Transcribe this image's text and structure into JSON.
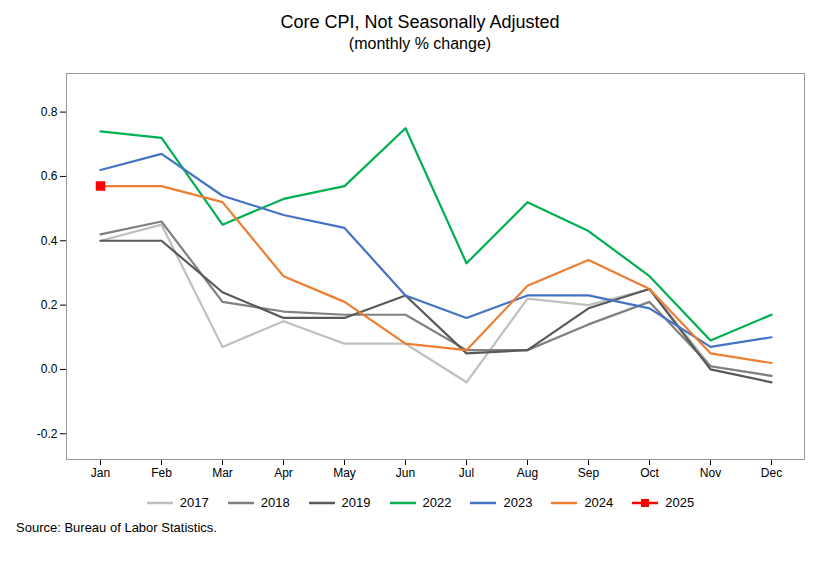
{
  "chart_data": {
    "type": "line",
    "title": "Core CPI, Not Seasonally Adjusted",
    "subtitle": "(monthly % change)",
    "source": "Source: Bureau of Labor Statistics.",
    "categories": [
      "Jan",
      "Feb",
      "Mar",
      "Apr",
      "May",
      "Jun",
      "Jul",
      "Aug",
      "Sep",
      "Oct",
      "Nov",
      "Dec"
    ],
    "series": [
      {
        "name": "2017",
        "color": "#bfbfbf",
        "values": [
          0.4,
          0.45,
          0.07,
          0.15,
          0.08,
          0.08,
          -0.04,
          0.22,
          0.2,
          0.25,
          0.01,
          -0.02
        ]
      },
      {
        "name": "2018",
        "color": "#808080",
        "values": [
          0.42,
          0.46,
          0.21,
          0.18,
          0.17,
          0.17,
          0.06,
          0.06,
          0.14,
          0.21,
          0.01,
          -0.02
        ]
      },
      {
        "name": "2019",
        "color": "#595959",
        "values": [
          0.4,
          0.4,
          0.24,
          0.16,
          0.16,
          0.23,
          0.05,
          0.06,
          0.19,
          0.25,
          0.0,
          -0.04
        ]
      },
      {
        "name": "2022",
        "color": "#00b050",
        "values": [
          0.74,
          0.72,
          0.45,
          0.53,
          0.57,
          0.75,
          0.33,
          0.52,
          0.43,
          0.29,
          0.09,
          0.17
        ]
      },
      {
        "name": "2023",
        "color": "#4472c4",
        "values": [
          0.62,
          0.67,
          0.54,
          0.48,
          0.44,
          0.23,
          0.16,
          0.23,
          0.23,
          0.19,
          0.07,
          0.1
        ]
      },
      {
        "name": "2024",
        "color": "#ed7d31",
        "values": [
          0.57,
          0.57,
          0.52,
          0.29,
          0.21,
          0.08,
          0.06,
          0.26,
          0.34,
          0.25,
          0.05,
          0.02
        ]
      },
      {
        "name": "2025",
        "color": "#ff0000",
        "marker": "square",
        "values": [
          0.57,
          null,
          null,
          null,
          null,
          null,
          null,
          null,
          null,
          null,
          null,
          null
        ]
      }
    ],
    "ylim": [
      -0.28,
      0.92
    ],
    "yticks": [
      -0.2,
      {
        "value": 0,
        "label": "0.0"
      },
      0.2,
      0.4,
      0.6,
      0.8
    ],
    "grid": false,
    "legend": "bottom"
  }
}
